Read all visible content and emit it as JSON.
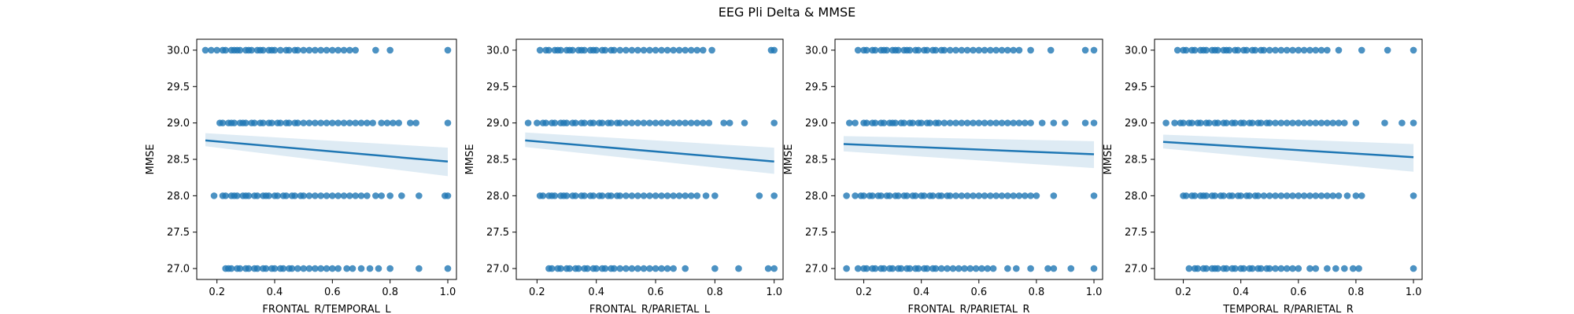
{
  "figure": {
    "title": "EEG Pli Delta & MMSE"
  },
  "colors": {
    "series": "#1f77b4",
    "band": "#1f77b4",
    "axis": "#000000"
  },
  "chart_data": [
    {
      "type": "scatter",
      "xlabel": "FRONTAL_R/TEMPORAL_L",
      "ylabel": "MMSE",
      "xlim": [
        0.13,
        1.03
      ],
      "ylim": [
        26.85,
        30.15
      ],
      "xticks": [
        "0.2",
        "0.4",
        "0.6",
        "0.8",
        "1.0"
      ],
      "yticks": [
        "27.0",
        "27.5",
        "28.0",
        "28.5",
        "29.0",
        "29.5",
        "30.0"
      ],
      "regression": {
        "x": [
          0.16,
          1.0
        ],
        "y": [
          28.76,
          28.47
        ],
        "ci_lower": [
          28.68,
          28.27
        ],
        "ci_upper": [
          28.86,
          28.66
        ]
      },
      "points": [
        {
          "y": 30,
          "x": [
            0.16,
            0.18,
            0.2,
            0.22,
            0.23,
            0.25,
            0.26,
            0.27,
            0.28,
            0.3,
            0.31,
            0.32,
            0.34,
            0.35,
            0.36,
            0.38,
            0.39,
            0.4,
            0.42,
            0.44,
            0.45,
            0.47,
            0.48,
            0.5,
            0.52,
            0.54,
            0.56,
            0.58,
            0.6,
            0.62,
            0.64,
            0.66,
            0.68,
            0.75,
            0.8,
            1.0
          ]
        },
        {
          "y": 29,
          "x": [
            0.21,
            0.22,
            0.24,
            0.25,
            0.26,
            0.28,
            0.29,
            0.3,
            0.32,
            0.33,
            0.35,
            0.36,
            0.38,
            0.39,
            0.41,
            0.42,
            0.44,
            0.45,
            0.47,
            0.48,
            0.5,
            0.52,
            0.54,
            0.56,
            0.58,
            0.6,
            0.62,
            0.64,
            0.66,
            0.68,
            0.7,
            0.72,
            0.74,
            0.77,
            0.79,
            0.81,
            0.83,
            0.87,
            0.89,
            1.0
          ]
        },
        {
          "y": 28,
          "x": [
            0.19,
            0.22,
            0.23,
            0.25,
            0.26,
            0.27,
            0.29,
            0.3,
            0.31,
            0.33,
            0.34,
            0.36,
            0.37,
            0.38,
            0.4,
            0.41,
            0.43,
            0.44,
            0.46,
            0.47,
            0.49,
            0.5,
            0.52,
            0.54,
            0.56,
            0.58,
            0.6,
            0.62,
            0.64,
            0.66,
            0.68,
            0.7,
            0.72,
            0.75,
            0.77,
            0.8,
            0.84,
            0.9,
            0.99,
            1.0
          ]
        },
        {
          "y": 27,
          "x": [
            0.23,
            0.24,
            0.25,
            0.27,
            0.28,
            0.3,
            0.31,
            0.33,
            0.34,
            0.36,
            0.37,
            0.39,
            0.4,
            0.42,
            0.43,
            0.45,
            0.46,
            0.48,
            0.5,
            0.52,
            0.54,
            0.56,
            0.58,
            0.6,
            0.62,
            0.65,
            0.67,
            0.7,
            0.73,
            0.76,
            0.8,
            0.9,
            1.0
          ]
        }
      ]
    },
    {
      "type": "scatter",
      "xlabel": "FRONTAL_R/PARIETAL_L",
      "ylabel": "MMSE",
      "xlim": [
        0.13,
        1.03
      ],
      "ylim": [
        26.85,
        30.15
      ],
      "xticks": [
        "0.2",
        "0.4",
        "0.6",
        "0.8",
        "1.0"
      ],
      "yticks": [
        "27.0",
        "27.5",
        "28.0",
        "28.5",
        "29.0",
        "29.5",
        "30.0"
      ],
      "regression": {
        "x": [
          0.16,
          1.0
        ],
        "y": [
          28.76,
          28.47
        ],
        "ci_lower": [
          28.67,
          28.3
        ],
        "ci_upper": [
          28.87,
          28.66
        ]
      },
      "points": [
        {
          "y": 30,
          "x": [
            0.21,
            0.23,
            0.24,
            0.26,
            0.27,
            0.28,
            0.3,
            0.31,
            0.32,
            0.34,
            0.35,
            0.36,
            0.38,
            0.39,
            0.4,
            0.42,
            0.43,
            0.45,
            0.46,
            0.48,
            0.5,
            0.52,
            0.54,
            0.56,
            0.58,
            0.6,
            0.62,
            0.64,
            0.66,
            0.68,
            0.7,
            0.72,
            0.74,
            0.76,
            0.79,
            0.99,
            1.0
          ]
        },
        {
          "y": 29,
          "x": [
            0.17,
            0.2,
            0.22,
            0.23,
            0.25,
            0.26,
            0.28,
            0.29,
            0.3,
            0.32,
            0.33,
            0.35,
            0.36,
            0.38,
            0.39,
            0.41,
            0.42,
            0.44,
            0.45,
            0.47,
            0.48,
            0.5,
            0.52,
            0.54,
            0.56,
            0.58,
            0.6,
            0.62,
            0.64,
            0.66,
            0.68,
            0.7,
            0.72,
            0.74,
            0.76,
            0.78,
            0.83,
            0.85,
            0.9,
            1.0
          ]
        },
        {
          "y": 28,
          "x": [
            0.21,
            0.22,
            0.24,
            0.25,
            0.26,
            0.28,
            0.29,
            0.3,
            0.32,
            0.33,
            0.35,
            0.36,
            0.38,
            0.39,
            0.41,
            0.42,
            0.44,
            0.45,
            0.47,
            0.48,
            0.5,
            0.52,
            0.54,
            0.56,
            0.58,
            0.6,
            0.62,
            0.64,
            0.66,
            0.68,
            0.7,
            0.72,
            0.74,
            0.77,
            0.8,
            0.95,
            1.0
          ]
        },
        {
          "y": 27,
          "x": [
            0.24,
            0.25,
            0.27,
            0.28,
            0.3,
            0.31,
            0.33,
            0.34,
            0.36,
            0.37,
            0.39,
            0.4,
            0.42,
            0.43,
            0.45,
            0.46,
            0.48,
            0.5,
            0.52,
            0.54,
            0.56,
            0.58,
            0.6,
            0.62,
            0.64,
            0.66,
            0.7,
            0.8,
            0.88,
            0.98,
            1.0
          ]
        }
      ]
    },
    {
      "type": "scatter",
      "xlabel": "FRONTAL_R/PARIETAL_R",
      "ylabel": "MMSE",
      "xlim": [
        0.1,
        1.03
      ],
      "ylim": [
        26.85,
        30.15
      ],
      "xticks": [
        "0.2",
        "0.4",
        "0.6",
        "0.8",
        "1.0"
      ],
      "yticks": [
        "27.0",
        "27.5",
        "28.0",
        "28.5",
        "29.0",
        "29.5",
        "30.0"
      ],
      "regression": {
        "x": [
          0.13,
          1.0
        ],
        "y": [
          28.71,
          28.57
        ],
        "ci_lower": [
          28.61,
          28.38
        ],
        "ci_upper": [
          28.82,
          28.75
        ]
      },
      "points": [
        {
          "y": 30,
          "x": [
            0.18,
            0.2,
            0.21,
            0.23,
            0.24,
            0.26,
            0.27,
            0.28,
            0.3,
            0.31,
            0.32,
            0.34,
            0.35,
            0.36,
            0.38,
            0.39,
            0.41,
            0.42,
            0.44,
            0.45,
            0.47,
            0.48,
            0.5,
            0.52,
            0.54,
            0.56,
            0.58,
            0.6,
            0.62,
            0.64,
            0.66,
            0.68,
            0.7,
            0.72,
            0.74,
            0.78,
            0.85,
            0.97,
            1.0
          ]
        },
        {
          "y": 29,
          "x": [
            0.15,
            0.17,
            0.2,
            0.21,
            0.23,
            0.24,
            0.26,
            0.27,
            0.29,
            0.3,
            0.31,
            0.33,
            0.34,
            0.36,
            0.37,
            0.39,
            0.4,
            0.42,
            0.43,
            0.45,
            0.46,
            0.48,
            0.5,
            0.52,
            0.54,
            0.56,
            0.58,
            0.6,
            0.62,
            0.64,
            0.66,
            0.68,
            0.7,
            0.72,
            0.74,
            0.76,
            0.78,
            0.82,
            0.86,
            0.9,
            0.97,
            1.0
          ]
        },
        {
          "y": 28,
          "x": [
            0.14,
            0.17,
            0.19,
            0.2,
            0.22,
            0.23,
            0.25,
            0.26,
            0.28,
            0.29,
            0.31,
            0.32,
            0.34,
            0.35,
            0.37,
            0.38,
            0.4,
            0.41,
            0.43,
            0.44,
            0.46,
            0.47,
            0.49,
            0.5,
            0.52,
            0.54,
            0.56,
            0.58,
            0.6,
            0.62,
            0.64,
            0.66,
            0.68,
            0.7,
            0.72,
            0.74,
            0.76,
            0.78,
            0.8,
            0.86,
            1.0
          ]
        },
        {
          "y": 27,
          "x": [
            0.14,
            0.18,
            0.2,
            0.21,
            0.23,
            0.24,
            0.26,
            0.27,
            0.29,
            0.3,
            0.32,
            0.33,
            0.35,
            0.36,
            0.38,
            0.39,
            0.41,
            0.42,
            0.44,
            0.45,
            0.47,
            0.49,
            0.51,
            0.53,
            0.55,
            0.57,
            0.59,
            0.61,
            0.63,
            0.65,
            0.7,
            0.73,
            0.78,
            0.84,
            0.86,
            0.92,
            1.0
          ]
        }
      ]
    },
    {
      "type": "scatter",
      "xlabel": "TEMPORAL_R/PARIETAL_R",
      "ylabel": "MMSE",
      "xlim": [
        0.1,
        1.03
      ],
      "ylim": [
        26.85,
        30.15
      ],
      "xticks": [
        "0.2",
        "0.4",
        "0.6",
        "0.8",
        "1.0"
      ],
      "yticks": [
        "27.0",
        "27.5",
        "28.0",
        "28.5",
        "29.0",
        "29.5",
        "30.0"
      ],
      "regression": {
        "x": [
          0.13,
          1.0
        ],
        "y": [
          28.74,
          28.53
        ],
        "ci_lower": [
          28.65,
          28.33
        ],
        "ci_upper": [
          28.84,
          28.71
        ]
      },
      "points": [
        {
          "y": 30,
          "x": [
            0.18,
            0.2,
            0.21,
            0.23,
            0.24,
            0.26,
            0.27,
            0.28,
            0.3,
            0.31,
            0.32,
            0.34,
            0.35,
            0.36,
            0.38,
            0.39,
            0.41,
            0.42,
            0.44,
            0.45,
            0.47,
            0.48,
            0.5,
            0.52,
            0.54,
            0.56,
            0.58,
            0.6,
            0.62,
            0.64,
            0.66,
            0.68,
            0.7,
            0.74,
            0.82,
            0.91,
            1.0
          ]
        },
        {
          "y": 29,
          "x": [
            0.14,
            0.17,
            0.19,
            0.2,
            0.22,
            0.23,
            0.25,
            0.26,
            0.28,
            0.29,
            0.31,
            0.32,
            0.34,
            0.35,
            0.37,
            0.38,
            0.4,
            0.41,
            0.43,
            0.44,
            0.46,
            0.47,
            0.49,
            0.5,
            0.52,
            0.54,
            0.56,
            0.58,
            0.6,
            0.62,
            0.64,
            0.66,
            0.68,
            0.7,
            0.72,
            0.74,
            0.76,
            0.8,
            0.9,
            0.96,
            1.0
          ]
        },
        {
          "y": 28,
          "x": [
            0.2,
            0.21,
            0.23,
            0.24,
            0.26,
            0.27,
            0.28,
            0.3,
            0.31,
            0.33,
            0.34,
            0.36,
            0.37,
            0.39,
            0.4,
            0.42,
            0.43,
            0.45,
            0.46,
            0.48,
            0.5,
            0.52,
            0.54,
            0.56,
            0.58,
            0.6,
            0.62,
            0.64,
            0.66,
            0.68,
            0.7,
            0.72,
            0.74,
            0.77,
            0.8,
            0.82,
            1.0
          ]
        },
        {
          "y": 27,
          "x": [
            0.22,
            0.24,
            0.25,
            0.27,
            0.28,
            0.3,
            0.31,
            0.32,
            0.34,
            0.35,
            0.37,
            0.38,
            0.4,
            0.41,
            0.43,
            0.44,
            0.46,
            0.47,
            0.49,
            0.5,
            0.52,
            0.54,
            0.56,
            0.58,
            0.6,
            0.64,
            0.66,
            0.7,
            0.73,
            0.76,
            0.79,
            0.81,
            1.0
          ]
        }
      ]
    }
  ]
}
